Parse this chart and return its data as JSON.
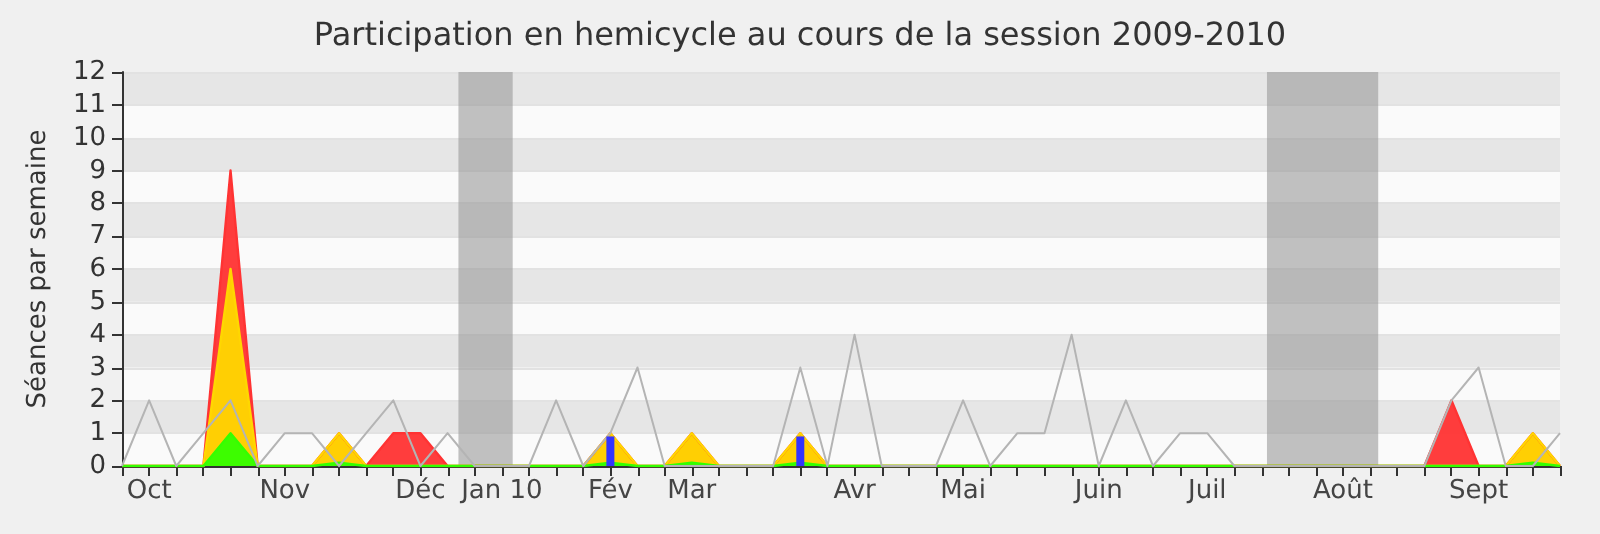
{
  "chart_data": {
    "type": "area",
    "title": "Participation en hemicycle au cours de la session 2009-2010",
    "ylabel": "Séances par semaine",
    "categories": [
      null,
      "Oct",
      null,
      null,
      null,
      null,
      "Nov",
      null,
      null,
      null,
      null,
      "Déc",
      null,
      null,
      "Jan 10",
      null,
      null,
      null,
      "Fév",
      null,
      null,
      "Mar",
      null,
      null,
      null,
      null,
      null,
      "Avr",
      null,
      null,
      null,
      "Mai",
      null,
      null,
      null,
      null,
      "Juin",
      null,
      null,
      null,
      "Juil",
      null,
      null,
      null,
      null,
      "Août",
      null,
      null,
      null,
      null,
      "Sept",
      null,
      null,
      null
    ],
    "series": [
      {
        "type": "line",
        "color": "#b4b4b4",
        "values": [
          0,
          2,
          0,
          1,
          2,
          0,
          1,
          1,
          0,
          1,
          2,
          0,
          1,
          0,
          0,
          0,
          2,
          0,
          1,
          3,
          0,
          0,
          0,
          0,
          0,
          3,
          0,
          4,
          0,
          0,
          0,
          2,
          0,
          1,
          1,
          4,
          0,
          2,
          0,
          1,
          1,
          0,
          0,
          0,
          0,
          0,
          0,
          0,
          0,
          2,
          3,
          0,
          0,
          1
        ]
      },
      {
        "color": "#ff3333",
        "values": [
          0,
          0,
          0,
          0,
          9,
          0,
          0,
          0,
          1,
          0,
          1,
          1,
          0,
          0,
          0,
          0,
          0,
          0,
          1,
          0,
          0,
          1,
          0,
          0,
          0,
          1,
          0,
          0,
          0,
          0,
          0,
          0,
          0,
          0,
          0,
          0,
          0,
          0,
          0,
          0,
          0,
          0,
          0,
          0,
          0,
          0,
          0,
          0,
          0,
          2,
          0,
          0,
          1,
          0
        ]
      },
      {
        "color": "#ffd700",
        "values": [
          0,
          0,
          0,
          0,
          6,
          0,
          0,
          0,
          1,
          0,
          0,
          0,
          0,
          0,
          0,
          0,
          0,
          0,
          1,
          0,
          0,
          1,
          0,
          0,
          0,
          1,
          0,
          0,
          0,
          0,
          0,
          0,
          0,
          0,
          0,
          0,
          0,
          0,
          0,
          0,
          0,
          0,
          0,
          0,
          0,
          0,
          0,
          0,
          0,
          0,
          0,
          0,
          1,
          0
        ]
      },
      {
        "color": "#33ff00",
        "values": [
          0,
          0,
          0,
          0,
          1,
          0,
          0,
          0,
          0.1,
          0,
          0,
          0,
          0,
          0,
          0,
          0,
          0,
          0,
          0.1,
          0,
          0,
          0.1,
          0,
          0,
          0,
          0.1,
          0,
          0,
          0,
          0,
          0,
          0,
          0,
          0,
          0,
          0,
          0,
          0,
          0,
          0,
          0,
          0,
          0,
          0,
          0,
          0,
          0,
          0,
          0,
          0,
          0,
          0,
          0.1,
          0
        ]
      },
      {
        "type": "bar",
        "color": "#3333ff",
        "values": [
          null,
          null,
          null,
          null,
          null,
          null,
          null,
          null,
          null,
          null,
          null,
          null,
          null,
          null,
          null,
          null,
          null,
          null,
          0.9,
          null,
          null,
          null,
          null,
          null,
          null,
          0.9,
          null,
          null,
          null,
          null,
          null,
          null,
          null,
          null,
          null,
          null,
          null,
          null,
          null,
          null,
          null,
          null,
          null,
          null,
          null,
          null,
          null,
          null,
          null,
          null,
          null,
          null,
          null,
          null
        ]
      }
    ],
    "ylim": [
      0,
      12
    ],
    "yticks": [
      0,
      1,
      2,
      3,
      4,
      5,
      6,
      7,
      8,
      9,
      10,
      11,
      12
    ],
    "grid": "y",
    "marker": "none"
  }
}
